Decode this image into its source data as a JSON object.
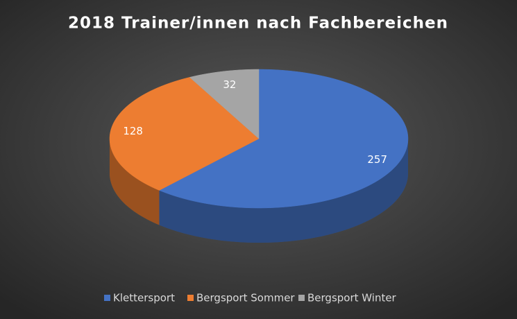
{
  "chart_data": {
    "type": "pie",
    "title": "2018 Trainer/innen nach Fachbereichen",
    "categories": [
      "Klettersport",
      "Bergsport Sommer",
      "Bergsport Winter"
    ],
    "values": [
      257,
      128,
      32
    ],
    "colors": [
      "#4472c4",
      "#ed7d31",
      "#a5a5a5"
    ],
    "legend": "bottom"
  }
}
